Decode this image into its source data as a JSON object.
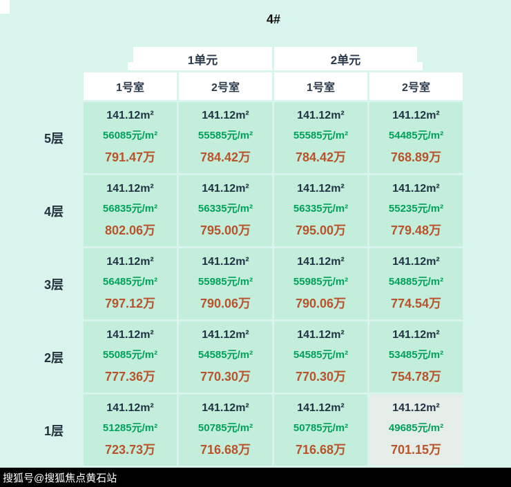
{
  "page": {
    "watermark": "搜狐号@搜狐焦点黄石站"
  },
  "colors": {
    "page_bg": "#d8f4ed",
    "cell_bg": "#c3eedb",
    "highlight_cell_bg": "#e5ede9",
    "header_bg": "#ffffff",
    "header_text": "#2a3a4b",
    "area_text": "#203243",
    "unit_price_text": "#00a159",
    "total_price_text": "#b8532b",
    "watermark_bg": "#000000",
    "watermark_text": "#ffffff"
  },
  "chart_data": {
    "type": "table",
    "title": "4#",
    "unit_headers": [
      "1单元",
      "2单元"
    ],
    "room_headers": [
      "1号室",
      "2号室",
      "1号室",
      "2号室"
    ],
    "rows": [
      {
        "floor": "5层",
        "cells": [
          {
            "area": "141.12m²",
            "unit_price": "56085元/m²",
            "total": "791.47万"
          },
          {
            "area": "141.12m²",
            "unit_price": "55585元/m²",
            "total": "784.42万"
          },
          {
            "area": "141.12m²",
            "unit_price": "55585元/m²",
            "total": "784.42万"
          },
          {
            "area": "141.12m²",
            "unit_price": "54485元/m²",
            "total": "768.89万"
          }
        ]
      },
      {
        "floor": "4层",
        "cells": [
          {
            "area": "141.12m²",
            "unit_price": "56835元/m²",
            "total": "802.06万"
          },
          {
            "area": "141.12m²",
            "unit_price": "56335元/m²",
            "total": "795.00万"
          },
          {
            "area": "141.12m²",
            "unit_price": "56335元/m²",
            "total": "795.00万"
          },
          {
            "area": "141.12m²",
            "unit_price": "55235元/m²",
            "total": "779.48万"
          }
        ]
      },
      {
        "floor": "3层",
        "cells": [
          {
            "area": "141.12m²",
            "unit_price": "56485元/m²",
            "total": "797.12万"
          },
          {
            "area": "141.12m²",
            "unit_price": "55985元/m²",
            "total": "790.06万"
          },
          {
            "area": "141.12m²",
            "unit_price": "55985元/m²",
            "total": "790.06万"
          },
          {
            "area": "141.12m²",
            "unit_price": "54885元/m²",
            "total": "774.54万"
          }
        ]
      },
      {
        "floor": "2层",
        "cells": [
          {
            "area": "141.12m²",
            "unit_price": "55085元/m²",
            "total": "777.36万"
          },
          {
            "area": "141.12m²",
            "unit_price": "54585元/m²",
            "total": "770.30万"
          },
          {
            "area": "141.12m²",
            "unit_price": "54585元/m²",
            "total": "770.30万"
          },
          {
            "area": "141.12m²",
            "unit_price": "53485元/m²",
            "total": "754.78万"
          }
        ]
      },
      {
        "floor": "1层",
        "cells": [
          {
            "area": "141.12m²",
            "unit_price": "51285元/m²",
            "total": "723.73万"
          },
          {
            "area": "141.12m²",
            "unit_price": "50785元/m²",
            "total": "716.68万"
          },
          {
            "area": "141.12m²",
            "unit_price": "50785元/m²",
            "total": "716.68万"
          },
          {
            "area": "141.12m²",
            "unit_price": "49685元/m²",
            "total": "701.15万",
            "highlighted": true
          }
        ]
      }
    ]
  }
}
